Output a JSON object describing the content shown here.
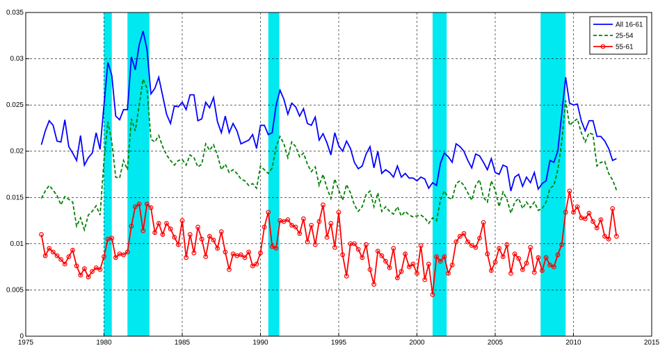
{
  "chart_data": {
    "type": "line",
    "xlim": [
      1975,
      2015
    ],
    "xticks": [
      1975,
      1980,
      1985,
      1990,
      1995,
      2000,
      2005,
      2010,
      2015
    ],
    "ylim": [
      0,
      0.035
    ],
    "yticks": [
      0,
      0.005,
      0.01,
      0.015,
      0.02,
      0.025,
      0.03,
      0.035
    ],
    "grid": true,
    "legend": "upper right",
    "shaded_periods": [
      [
        1980,
        1980.5
      ],
      [
        1981.5,
        1982.9
      ],
      [
        1990.5,
        1991.2
      ],
      [
        2001,
        2001.9
      ],
      [
        2007.9,
        2009.5
      ]
    ],
    "shade_color": "#00e8f0",
    "x": [
      1976,
      1976.25,
      1976.5,
      1976.75,
      1977,
      1977.25,
      1977.5,
      1977.75,
      1978,
      1978.25,
      1978.5,
      1978.75,
      1979,
      1979.25,
      1979.5,
      1979.75,
      1980,
      1980.25,
      1980.5,
      1980.75,
      1981,
      1981.25,
      1981.5,
      1981.75,
      1982,
      1982.25,
      1982.5,
      1982.75,
      1983,
      1983.25,
      1983.5,
      1983.75,
      1984,
      1984.25,
      1984.5,
      1984.75,
      1985,
      1985.25,
      1985.5,
      1985.75,
      1986,
      1986.25,
      1986.5,
      1986.75,
      1987,
      1987.25,
      1987.5,
      1987.75,
      1988,
      1988.25,
      1988.5,
      1988.75,
      1989,
      1989.25,
      1989.5,
      1989.75,
      1990,
      1990.25,
      1990.5,
      1990.75,
      1991,
      1991.25,
      1991.5,
      1991.75,
      1992,
      1992.25,
      1992.5,
      1992.75,
      1993,
      1993.25,
      1993.5,
      1993.75,
      1994,
      1994.25,
      1994.5,
      1994.75,
      1995,
      1995.25,
      1995.5,
      1995.75,
      1996,
      1996.25,
      1996.5,
      1996.75,
      1997,
      1997.25,
      1997.5,
      1997.75,
      1998,
      1998.25,
      1998.5,
      1998.75,
      1999,
      1999.25,
      1999.5,
      1999.75,
      2000,
      2000.25,
      2000.5,
      2000.75,
      2001,
      2001.25,
      2001.5,
      2001.75,
      2002,
      2002.25,
      2002.5,
      2002.75,
      2003,
      2003.25,
      2003.5,
      2003.75,
      2004,
      2004.25,
      2004.5,
      2004.75,
      2005,
      2005.25,
      2005.5,
      2005.75,
      2006,
      2006.25,
      2006.5,
      2006.75,
      2007,
      2007.25,
      2007.5,
      2007.75,
      2008,
      2008.25,
      2008.5,
      2008.75,
      2009,
      2009.25,
      2009.5,
      2009.75,
      2010,
      2010.25,
      2010.5,
      2010.75,
      2011,
      2011.25,
      2011.5,
      2011.75,
      2012,
      2012.25,
      2012.5,
      2012.75
    ],
    "series": [
      {
        "name": "All 16-61",
        "color": "#0000ff",
        "style": "solid",
        "marker": false,
        "values": [
          0.0207,
          0.0222,
          0.0233,
          0.0228,
          0.0211,
          0.021,
          0.0234,
          0.0205,
          0.0198,
          0.019,
          0.0217,
          0.0185,
          0.0193,
          0.0198,
          0.022,
          0.0202,
          0.025,
          0.0296,
          0.0282,
          0.0238,
          0.0234,
          0.0245,
          0.0245,
          0.0302,
          0.0288,
          0.0315,
          0.033,
          0.031,
          0.0262,
          0.0268,
          0.028,
          0.026,
          0.024,
          0.023,
          0.0249,
          0.0248,
          0.0253,
          0.0245,
          0.0261,
          0.0261,
          0.0233,
          0.0235,
          0.0253,
          0.0247,
          0.0258,
          0.0232,
          0.022,
          0.0238,
          0.022,
          0.023,
          0.0222,
          0.0208,
          0.021,
          0.0212,
          0.0218,
          0.0203,
          0.0228,
          0.0228,
          0.0218,
          0.022,
          0.025,
          0.0266,
          0.0256,
          0.024,
          0.0252,
          0.0248,
          0.0238,
          0.0246,
          0.023,
          0.0228,
          0.0237,
          0.0212,
          0.0219,
          0.0209,
          0.0196,
          0.022,
          0.0206,
          0.02,
          0.0211,
          0.0203,
          0.0188,
          0.0181,
          0.0184,
          0.0197,
          0.0205,
          0.0182,
          0.02,
          0.0176,
          0.018,
          0.0177,
          0.0172,
          0.0184,
          0.0172,
          0.0176,
          0.0171,
          0.0171,
          0.0168,
          0.0172,
          0.017,
          0.016,
          0.0166,
          0.0163,
          0.0187,
          0.0198,
          0.0194,
          0.0188,
          0.0208,
          0.0205,
          0.02,
          0.019,
          0.0182,
          0.0197,
          0.0195,
          0.0188,
          0.018,
          0.0192,
          0.0177,
          0.0175,
          0.0185,
          0.0183,
          0.0157,
          0.0172,
          0.0175,
          0.0162,
          0.0172,
          0.0166,
          0.0177,
          0.0159,
          0.0165,
          0.0168,
          0.019,
          0.0188,
          0.02,
          0.024,
          0.028,
          0.0252,
          0.025,
          0.0251,
          0.0233,
          0.0222,
          0.0233,
          0.0233,
          0.0216,
          0.0216,
          0.0211,
          0.0203,
          0.019,
          0.0192
        ]
      },
      {
        "name": "25-54",
        "color": "#008000",
        "style": "dashed",
        "marker": false,
        "values": [
          0.0149,
          0.0157,
          0.0163,
          0.0158,
          0.0152,
          0.0142,
          0.0151,
          0.0148,
          0.0145,
          0.0119,
          0.0128,
          0.0115,
          0.0131,
          0.0135,
          0.0141,
          0.0131,
          0.019,
          0.0232,
          0.021,
          0.0172,
          0.0171,
          0.019,
          0.018,
          0.0235,
          0.0222,
          0.025,
          0.0278,
          0.0268,
          0.0213,
          0.021,
          0.0217,
          0.0205,
          0.0196,
          0.019,
          0.0185,
          0.019,
          0.0191,
          0.0185,
          0.0196,
          0.0193,
          0.0183,
          0.0186,
          0.0208,
          0.0201,
          0.0207,
          0.0196,
          0.018,
          0.0186,
          0.0177,
          0.018,
          0.0176,
          0.017,
          0.0168,
          0.0163,
          0.0165,
          0.016,
          0.0184,
          0.018,
          0.0176,
          0.0182,
          0.0205,
          0.0216,
          0.0208,
          0.0193,
          0.021,
          0.0205,
          0.0194,
          0.0198,
          0.0186,
          0.0178,
          0.0183,
          0.0163,
          0.0175,
          0.016,
          0.0149,
          0.017,
          0.0158,
          0.0147,
          0.0164,
          0.0155,
          0.0142,
          0.0135,
          0.014,
          0.0153,
          0.0157,
          0.014,
          0.0155,
          0.0135,
          0.014,
          0.0135,
          0.0132,
          0.014,
          0.013,
          0.0135,
          0.0131,
          0.0129,
          0.013,
          0.0131,
          0.0128,
          0.0122,
          0.0128,
          0.0125,
          0.0147,
          0.0157,
          0.015,
          0.0148,
          0.0165,
          0.0168,
          0.0163,
          0.0155,
          0.0147,
          0.0163,
          0.0169,
          0.015,
          0.0145,
          0.0168,
          0.0158,
          0.014,
          0.0156,
          0.0148,
          0.0133,
          0.0145,
          0.0149,
          0.0138,
          0.0145,
          0.0139,
          0.0145,
          0.0136,
          0.0138,
          0.0145,
          0.016,
          0.0163,
          0.018,
          0.021,
          0.0255,
          0.0228,
          0.0232,
          0.0235,
          0.022,
          0.021,
          0.022,
          0.0218,
          0.0184,
          0.0188,
          0.0189,
          0.0176,
          0.0169,
          0.0158
        ]
      },
      {
        "name": "55-61",
        "color": "#ff0000",
        "style": "solid",
        "marker": true,
        "values": [
          0.011,
          0.0087,
          0.0095,
          0.0091,
          0.0087,
          0.0083,
          0.0078,
          0.0086,
          0.0093,
          0.0076,
          0.0066,
          0.0073,
          0.0064,
          0.007,
          0.0074,
          0.0072,
          0.0086,
          0.0105,
          0.0106,
          0.0085,
          0.0089,
          0.0088,
          0.0091,
          0.0119,
          0.014,
          0.0143,
          0.0114,
          0.0143,
          0.0139,
          0.0112,
          0.0122,
          0.011,
          0.0122,
          0.0116,
          0.0107,
          0.0099,
          0.0125,
          0.0085,
          0.011,
          0.009,
          0.0118,
          0.0105,
          0.0086,
          0.0108,
          0.0104,
          0.0095,
          0.0113,
          0.0091,
          0.0072,
          0.0089,
          0.0087,
          0.0088,
          0.0085,
          0.0091,
          0.0076,
          0.0078,
          0.009,
          0.0118,
          0.0134,
          0.0097,
          0.0095,
          0.0125,
          0.0124,
          0.0126,
          0.012,
          0.0118,
          0.0111,
          0.0127,
          0.0102,
          0.012,
          0.0099,
          0.0124,
          0.0142,
          0.0107,
          0.0122,
          0.0096,
          0.0134,
          0.0088,
          0.0065,
          0.01,
          0.01,
          0.0094,
          0.0085,
          0.0099,
          0.0072,
          0.0056,
          0.0092,
          0.0087,
          0.0081,
          0.0074,
          0.0095,
          0.0063,
          0.007,
          0.0089,
          0.0075,
          0.0078,
          0.0068,
          0.0098,
          0.0061,
          0.0078,
          0.0045,
          0.0086,
          0.0081,
          0.0086,
          0.0068,
          0.0077,
          0.0102,
          0.0108,
          0.0111,
          0.0102,
          0.0098,
          0.0096,
          0.0106,
          0.0123,
          0.0089,
          0.0071,
          0.008,
          0.0095,
          0.0086,
          0.0099,
          0.0068,
          0.0089,
          0.0084,
          0.0072,
          0.0079,
          0.0096,
          0.0069,
          0.0085,
          0.0071,
          0.0085,
          0.0077,
          0.0075,
          0.0088,
          0.0099,
          0.0134,
          0.0157,
          0.0134,
          0.014,
          0.0128,
          0.0127,
          0.0133,
          0.0124,
          0.0117,
          0.0126,
          0.0108,
          0.0105,
          0.0138,
          0.0108
        ]
      }
    ]
  }
}
